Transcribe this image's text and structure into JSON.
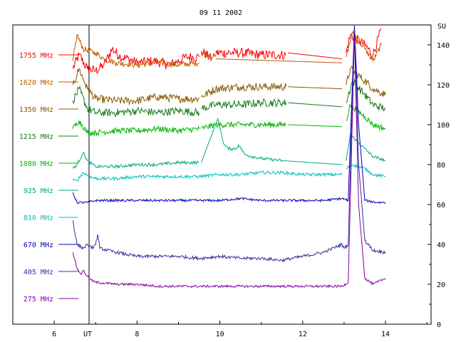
{
  "chart_data": {
    "type": "line",
    "title": "09 11 2002",
    "xlabel": "UT",
    "ylabel": "SU",
    "xlim": [
      5,
      15.1
    ],
    "ylim": [
      0,
      150
    ],
    "x_ticks": [
      "6",
      "8",
      "10",
      "12",
      "14"
    ],
    "y_ticks": [
      "0",
      "20",
      "40",
      "60",
      "80",
      "100",
      "120",
      "140"
    ],
    "grid": false,
    "legend_position": "left",
    "series": [
      {
        "name": "1755 MHz",
        "color": "#ff0000",
        "noise": 2.5,
        "points": [
          [
            6.45,
            128
          ],
          [
            6.6,
            135
          ],
          [
            6.8,
            128
          ],
          [
            7.0,
            127
          ],
          [
            7.2,
            130
          ],
          [
            7.4,
            138
          ],
          [
            7.6,
            134
          ],
          [
            7.8,
            133
          ],
          [
            8.0,
            131
          ],
          [
            8.4,
            132
          ],
          [
            8.8,
            130
          ],
          [
            9.2,
            134
          ],
          [
            9.5,
            134
          ],
          [
            9.55,
            null
          ],
          [
            9.55,
            137
          ],
          [
            9.8,
            133
          ],
          [
            9.9,
            null
          ],
          [
            9.9,
            136
          ],
          [
            10.5,
            136
          ],
          [
            11.0,
            135
          ],
          [
            11.6,
            135
          ],
          [
            11.65,
            null
          ],
          [
            11.65,
            136
          ],
          [
            12.95,
            133
          ],
          [
            13.05,
            null
          ],
          [
            13.05,
            136
          ],
          [
            13.15,
            145
          ],
          [
            13.5,
            140
          ],
          [
            13.7,
            135
          ],
          [
            13.9,
            148
          ]
        ]
      },
      {
        "name": "1620 MHz",
        "color": "#c05a00",
        "noise": 1.5,
        "points": [
          [
            6.45,
            132
          ],
          [
            6.55,
            145
          ],
          [
            6.7,
            138
          ],
          [
            7.0,
            136
          ],
          [
            7.2,
            133
          ],
          [
            7.5,
            131
          ],
          [
            8.0,
            130
          ],
          [
            8.5,
            131
          ],
          [
            9.0,
            130
          ],
          [
            9.5,
            131
          ],
          [
            9.55,
            null
          ],
          [
            9.55,
            136
          ],
          [
            9.9,
            134
          ],
          [
            9.9,
            null
          ],
          [
            9.9,
            133
          ],
          [
            12.95,
            131
          ],
          [
            13.05,
            null
          ],
          [
            13.05,
            134
          ],
          [
            13.2,
            146
          ],
          [
            13.5,
            138
          ],
          [
            13.7,
            132
          ],
          [
            13.9,
            140
          ]
        ]
      },
      {
        "name": "1350 MHz",
        "color": "#8b5a00",
        "noise": 2.0,
        "points": [
          [
            6.45,
            120
          ],
          [
            6.6,
            128
          ],
          [
            6.8,
            118
          ],
          [
            7.0,
            113
          ],
          [
            7.5,
            112
          ],
          [
            8.0,
            112
          ],
          [
            8.5,
            114
          ],
          [
            9.0,
            113
          ],
          [
            9.5,
            113
          ],
          [
            9.55,
            null
          ],
          [
            9.55,
            114
          ],
          [
            9.9,
            118
          ],
          [
            10.5,
            119
          ],
          [
            11.0,
            119
          ],
          [
            11.6,
            119
          ],
          [
            11.65,
            null
          ],
          [
            11.65,
            119
          ],
          [
            12.95,
            118
          ],
          [
            13.05,
            null
          ],
          [
            13.05,
            120
          ],
          [
            13.15,
            128
          ],
          [
            13.5,
            122
          ],
          [
            13.7,
            118
          ],
          [
            14.0,
            115
          ]
        ]
      },
      {
        "name": "1215 MHz",
        "color": "#1a7a1a",
        "noise": 2.0,
        "points": [
          [
            6.45,
            112
          ],
          [
            6.6,
            118
          ],
          [
            6.8,
            108
          ],
          [
            7.0,
            106
          ],
          [
            7.5,
            106
          ],
          [
            8.0,
            107
          ],
          [
            8.5,
            106
          ],
          [
            9.0,
            107
          ],
          [
            9.5,
            106
          ],
          [
            9.55,
            null
          ],
          [
            9.55,
            108
          ],
          [
            9.9,
            110
          ],
          [
            10.5,
            110
          ],
          [
            11.0,
            111
          ],
          [
            11.6,
            111
          ],
          [
            11.65,
            null
          ],
          [
            11.65,
            111
          ],
          [
            12.95,
            109
          ],
          [
            13.05,
            null
          ],
          [
            13.05,
            111
          ],
          [
            13.2,
            122
          ],
          [
            13.5,
            115
          ],
          [
            13.7,
            110
          ],
          [
            14.0,
            108
          ]
        ]
      },
      {
        "name": "1080 MHz",
        "color": "#00b400",
        "noise": 1.5,
        "points": [
          [
            6.45,
            98
          ],
          [
            6.6,
            102
          ],
          [
            6.8,
            96
          ],
          [
            7.0,
            96
          ],
          [
            7.5,
            97
          ],
          [
            8.0,
            97
          ],
          [
            8.5,
            98
          ],
          [
            9.0,
            97
          ],
          [
            9.5,
            98
          ],
          [
            9.55,
            null
          ],
          [
            9.55,
            98
          ],
          [
            9.9,
            100
          ],
          [
            10.5,
            100
          ],
          [
            11.0,
            100
          ],
          [
            11.6,
            100
          ],
          [
            11.65,
            null
          ],
          [
            11.65,
            100
          ],
          [
            12.95,
            99
          ],
          [
            13.05,
            null
          ],
          [
            13.05,
            102
          ],
          [
            13.15,
            110
          ],
          [
            13.5,
            104
          ],
          [
            13.7,
            100
          ],
          [
            14.0,
            98
          ]
        ]
      },
      {
        "name": "925 MHz",
        "color": "#00aa88",
        "noise": 0.8,
        "points": [
          [
            6.45,
            78
          ],
          [
            6.55,
            80
          ],
          [
            6.7,
            86
          ],
          [
            6.8,
            82
          ],
          [
            7.0,
            79
          ],
          [
            7.5,
            79
          ],
          [
            8.0,
            80
          ],
          [
            8.5,
            80
          ],
          [
            9.0,
            81
          ],
          [
            9.5,
            81
          ],
          [
            9.55,
            null
          ],
          [
            9.55,
            81
          ],
          [
            9.95,
            103
          ],
          [
            10.1,
            90
          ],
          [
            10.2,
            88
          ],
          [
            10.4,
            88
          ],
          [
            10.45,
            90
          ],
          [
            10.6,
            85
          ],
          [
            11.0,
            83
          ],
          [
            11.5,
            82
          ],
          [
            12.95,
            80
          ],
          [
            13.05,
            null
          ],
          [
            13.05,
            82
          ],
          [
            13.15,
            95
          ],
          [
            13.5,
            88
          ],
          [
            13.7,
            84
          ],
          [
            14.0,
            82
          ]
        ]
      },
      {
        "name": "810 MHz",
        "color": "#00c0c0",
        "noise": 0.8,
        "points": [
          [
            6.45,
            72
          ],
          [
            6.55,
            72
          ],
          [
            6.7,
            76
          ],
          [
            6.85,
            74
          ],
          [
            7.0,
            73
          ],
          [
            7.5,
            73
          ],
          [
            8.0,
            74
          ],
          [
            8.5,
            74
          ],
          [
            9.0,
            74
          ],
          [
            9.5,
            74
          ],
          [
            10.0,
            75
          ],
          [
            10.5,
            75
          ],
          [
            11.0,
            76
          ],
          [
            11.5,
            76
          ],
          [
            12.0,
            75
          ],
          [
            12.5,
            75
          ],
          [
            12.95,
            75
          ],
          [
            13.05,
            null
          ],
          [
            13.05,
            78
          ],
          [
            13.2,
            80
          ],
          [
            13.5,
            78
          ],
          [
            13.7,
            75
          ],
          [
            14.0,
            74
          ]
        ]
      },
      {
        "name": "670 MHz",
        "color": "#0000c0",
        "noise": 0.6,
        "points": [
          [
            6.45,
            66
          ],
          [
            6.55,
            61
          ],
          [
            6.8,
            61
          ],
          [
            7.0,
            62
          ],
          [
            7.5,
            62
          ],
          [
            8.0,
            62
          ],
          [
            8.5,
            62
          ],
          [
            9.0,
            62
          ],
          [
            9.5,
            62
          ],
          [
            10.0,
            62
          ],
          [
            10.5,
            63
          ],
          [
            11.0,
            62
          ],
          [
            11.5,
            62
          ],
          [
            12.0,
            62
          ],
          [
            12.5,
            62
          ],
          [
            12.95,
            63
          ],
          [
            13.1,
            62
          ],
          [
            13.25,
            150
          ],
          [
            13.35,
            100
          ],
          [
            13.5,
            62
          ],
          [
            13.8,
            61
          ],
          [
            14.0,
            61
          ]
        ]
      },
      {
        "name": "405 MHz",
        "color": "#3030a0",
        "noise": 0.8,
        "points": [
          [
            6.45,
            52
          ],
          [
            6.55,
            40
          ],
          [
            6.7,
            38
          ],
          [
            6.8,
            40
          ],
          [
            6.9,
            38
          ],
          [
            7.0,
            40
          ],
          [
            7.05,
            45
          ],
          [
            7.1,
            38
          ],
          [
            7.5,
            36
          ],
          [
            8.0,
            34
          ],
          [
            8.5,
            34
          ],
          [
            9.0,
            34
          ],
          [
            9.5,
            33
          ],
          [
            10.0,
            34
          ],
          [
            10.5,
            33
          ],
          [
            11.0,
            33
          ],
          [
            11.5,
            32
          ],
          [
            12.0,
            34
          ],
          [
            12.5,
            36
          ],
          [
            12.95,
            40
          ],
          [
            13.0,
            38
          ],
          [
            13.1,
            40
          ],
          [
            13.25,
            150
          ],
          [
            13.35,
            80
          ],
          [
            13.5,
            42
          ],
          [
            13.7,
            37
          ],
          [
            14.0,
            36
          ]
        ]
      },
      {
        "name": "275 MHz",
        "color": "#8000a0",
        "noise": 0.6,
        "points": [
          [
            6.45,
            36
          ],
          [
            6.55,
            28
          ],
          [
            6.65,
            25
          ],
          [
            6.7,
            27
          ],
          [
            6.8,
            24
          ],
          [
            6.9,
            22
          ],
          [
            7.0,
            21
          ],
          [
            7.5,
            20
          ],
          [
            8.0,
            20
          ],
          [
            8.5,
            19
          ],
          [
            9.0,
            19
          ],
          [
            9.5,
            19
          ],
          [
            10.0,
            19
          ],
          [
            10.5,
            19
          ],
          [
            11.0,
            19
          ],
          [
            11.5,
            19
          ],
          [
            12.0,
            19
          ],
          [
            12.5,
            19
          ],
          [
            12.95,
            19
          ],
          [
            13.1,
            21
          ],
          [
            13.25,
            145
          ],
          [
            13.35,
            60
          ],
          [
            13.5,
            23
          ],
          [
            13.7,
            20
          ],
          [
            14.0,
            23
          ]
        ]
      }
    ]
  }
}
